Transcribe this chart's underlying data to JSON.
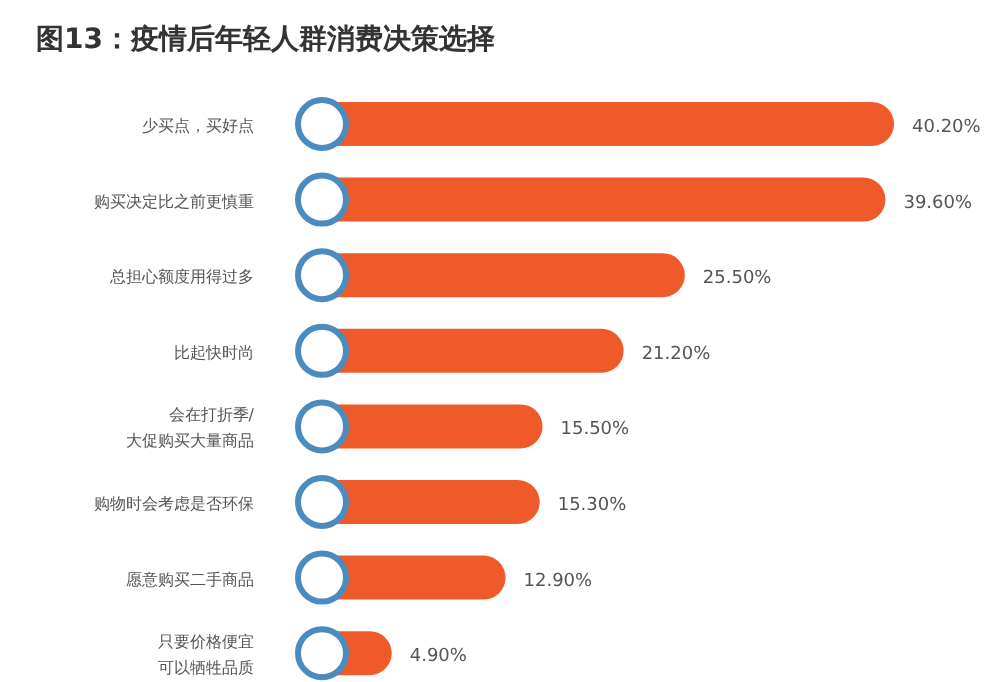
{
  "chart_data": {
    "type": "bar",
    "orientation": "horizontal",
    "title": "图13：疫情后年轻人群消费决策选择",
    "categories": [
      "少买点，买好点",
      "购买决定比之前更慎重",
      "总担心额度用得过多",
      "比起快时尚",
      "会在打折季/大促购买大量商品",
      "购物时会考虑是否环保",
      "愿意购买二手商品",
      "只要价格便宜可以牺牲品质"
    ],
    "values": [
      40.2,
      39.6,
      25.5,
      21.2,
      15.5,
      15.3,
      12.9,
      4.9
    ],
    "value_labels": [
      "40.20%",
      "39.60%",
      "25.50%",
      "21.20%",
      "15.50%",
      "15.30%",
      "12.90%",
      "4.90%"
    ],
    "color": "#ef5a2a"
  }
}
